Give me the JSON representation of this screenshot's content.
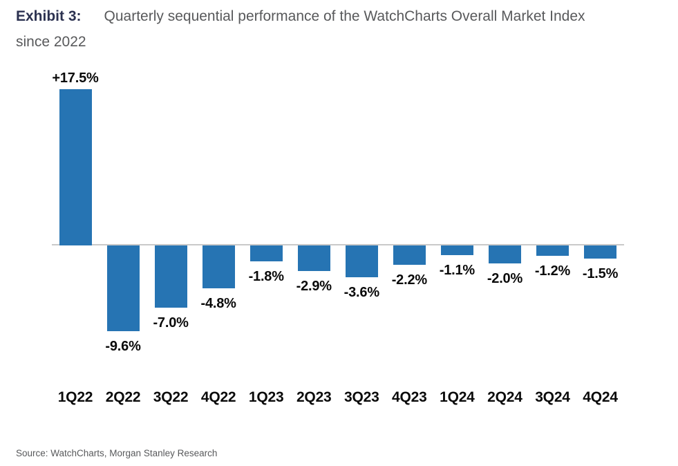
{
  "title": {
    "exhibit_label": "Exhibit 3:",
    "line1": "Quarterly sequential performance of the WatchCharts Overall Market Index",
    "line2": "since 2022"
  },
  "source": "Source: WatchCharts, Morgan Stanley Research",
  "colors": {
    "bar": "#2674B3",
    "exhibit_label": "#2B3150",
    "title_text": "#58595B",
    "value_label": "#0A0A0A",
    "axis_line": "#C9C9C9",
    "source_text": "#58595B"
  },
  "chart_data": {
    "type": "bar",
    "title": "Quarterly sequential performance of the WatchCharts Overall Market Index since 2022",
    "categories": [
      "1Q22",
      "2Q22",
      "3Q22",
      "4Q22",
      "1Q23",
      "2Q23",
      "3Q23",
      "4Q23",
      "1Q24",
      "2Q24",
      "3Q24",
      "4Q24"
    ],
    "values": [
      17.5,
      -9.6,
      -7.0,
      -4.8,
      -1.8,
      -2.9,
      -3.6,
      -2.2,
      -1.1,
      -2.0,
      -1.2,
      -1.5
    ],
    "value_labels": [
      "+17.5%",
      "-9.6%",
      "-7.0%",
      "-4.8%",
      "-1.8%",
      "-2.9%",
      "-3.6%",
      "-2.2%",
      "-1.1%",
      "-2.0%",
      "-1.2%",
      "-1.5%"
    ],
    "xlabel": "",
    "ylabel": "",
    "ylim": [
      -12,
      20
    ],
    "grid": false,
    "legend": null,
    "bar_color": "#2674B3",
    "baseline": 0
  }
}
